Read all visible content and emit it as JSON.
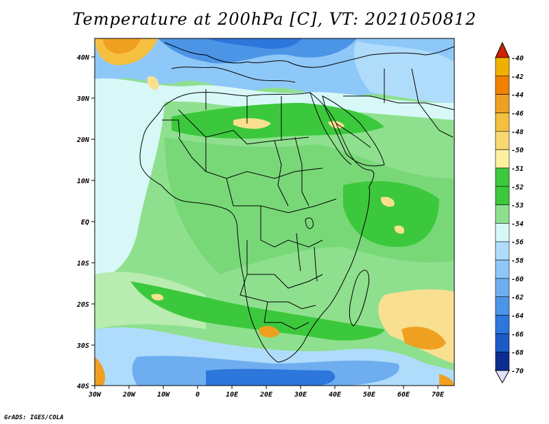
{
  "title": "Temperature at 200hPa [C], VT: 2021050812",
  "credit": "GrADS: IGES/COLA",
  "x_ticks": [
    "30W",
    "20W",
    "10W",
    "0",
    "10E",
    "20E",
    "30E",
    "40E",
    "50E",
    "60E",
    "70E"
  ],
  "y_ticks": [
    "40N",
    "30N",
    "20N",
    "10N",
    "EQ",
    "10S",
    "20S",
    "30S",
    "40S"
  ],
  "colorbar": {
    "labels": [
      "-40",
      "-42",
      "-44",
      "-46",
      "-48",
      "-50",
      "-51",
      "-52",
      "-53",
      "-54",
      "-56",
      "-58",
      "-60",
      "-62",
      "-64",
      "-66",
      "-68",
      "-70"
    ],
    "colors": [
      "#f0b000",
      "#f08000",
      "#f0a020",
      "#f5c040",
      "#f8d870",
      "#fdf0a0",
      "#3cc83c",
      "#3cc83c",
      "#8ee08e",
      "#d8f8f8",
      "#b0dcfc",
      "#8ec8f8",
      "#6eaef0",
      "#4c94e6",
      "#2c76dc",
      "#1c5ac8",
      "#0c2c90",
      "#e0e0ff"
    ],
    "top_triangle": "#d02000",
    "bottom_triangle": "#e0e0ff"
  },
  "palette": {
    "warm": "#f0a020",
    "yellow": "#f8e090",
    "green_dark": "#3cc83c",
    "green": "#78d878",
    "green_light": "#b8ecb0",
    "pale": "#d8f8f8",
    "blue_light": "#b0dcfc",
    "blue": "#6eaef0",
    "blue_dark": "#2c76dc"
  }
}
